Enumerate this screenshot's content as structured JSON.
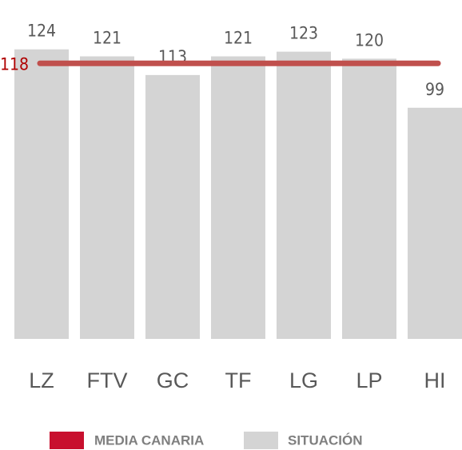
{
  "chart_data": {
    "type": "bar",
    "categories": [
      "LZ",
      "FTV",
      "GC",
      "TF",
      "LG",
      "LP",
      "HI"
    ],
    "series": [
      {
        "name": "SITUACIÓN",
        "color": "#d4d4d4",
        "values": [
          124,
          121,
          113,
          121,
          123,
          120,
          99
        ]
      }
    ],
    "reference": {
      "name": "MEDIA CANARIA",
      "value": 118,
      "color": "#c0504d",
      "legend_color": "#c8102e",
      "label_color": "#b00000"
    },
    "ylim": [
      0,
      140
    ]
  }
}
